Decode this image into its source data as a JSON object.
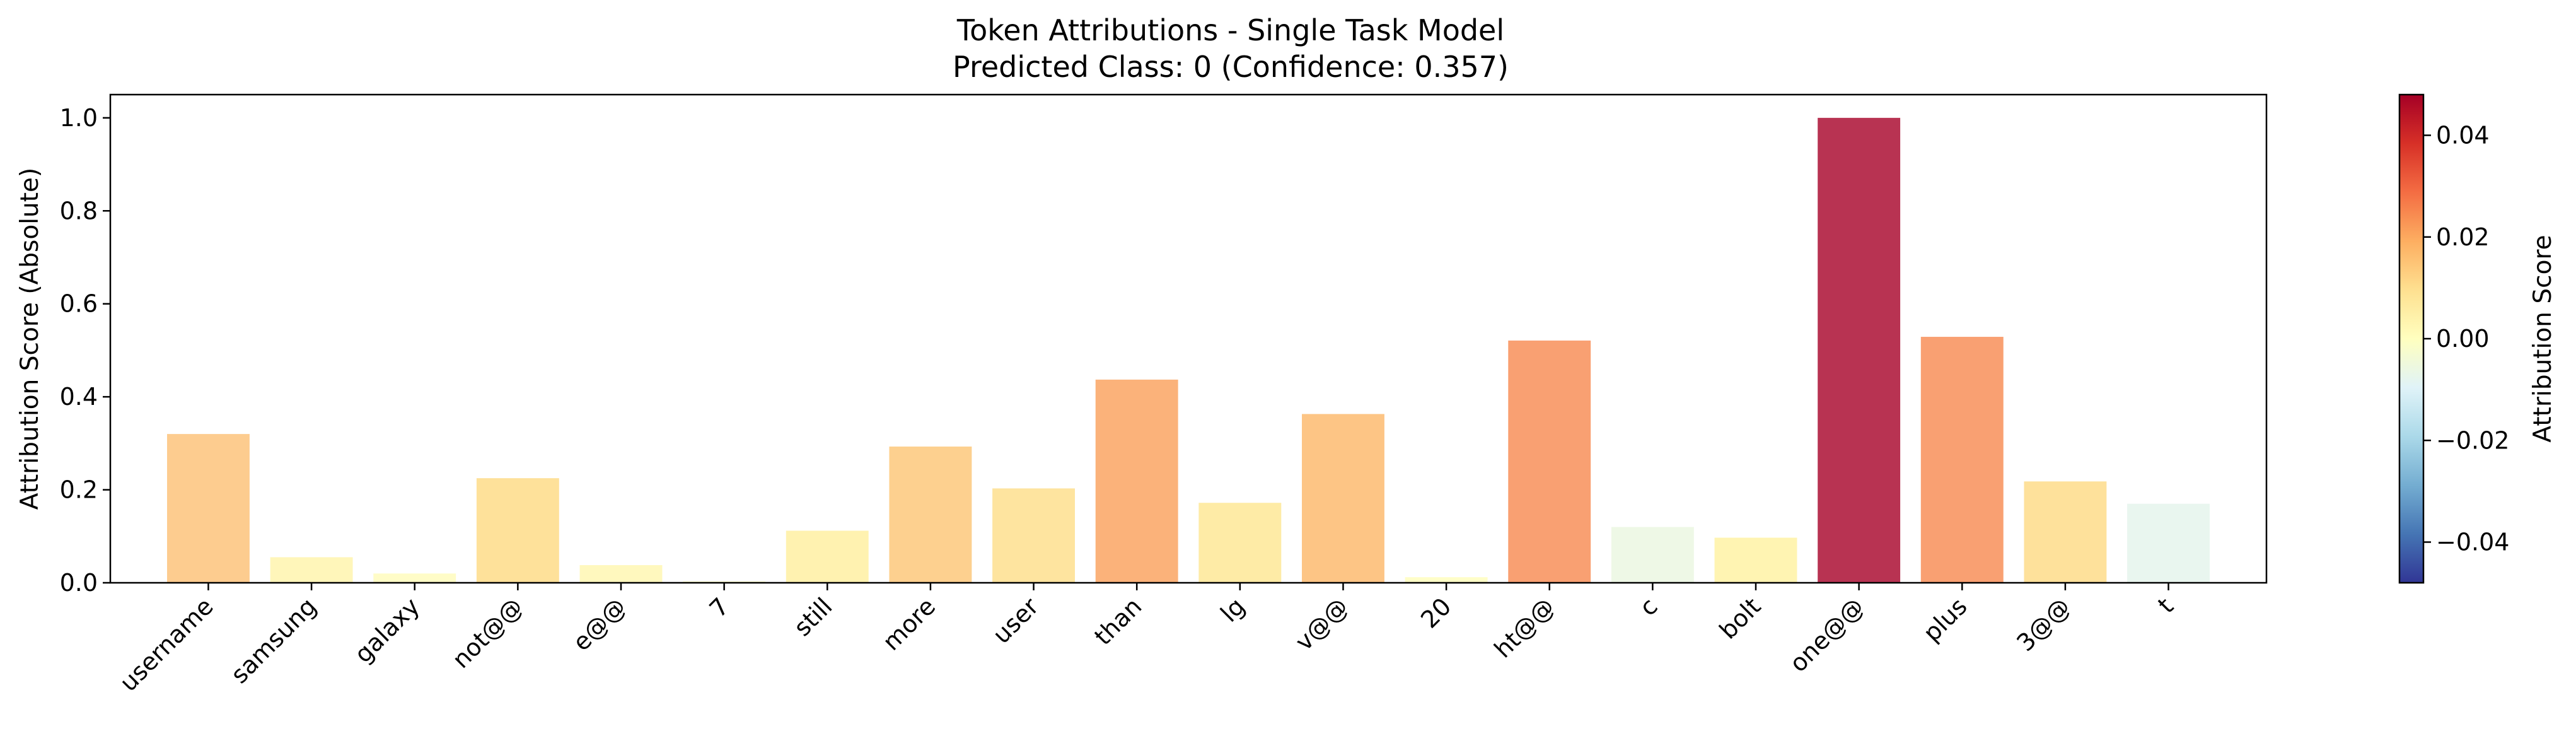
{
  "chart_data": {
    "type": "bar",
    "title": "Token Attributions - Single Task Model",
    "subtitle": "Predicted Class: 0 (Confidence: 0.357)",
    "xlabel": "",
    "ylabel": "Attribution Score (Absolute)",
    "ylim": [
      0,
      1.05
    ],
    "yticks": [
      "0.0",
      "0.2",
      "0.4",
      "0.6",
      "0.8",
      "1.0"
    ],
    "categories": [
      "username",
      "samsung",
      "galaxy",
      "not@@",
      "e@@",
      "7",
      "still",
      "more",
      "user",
      "than",
      "lg",
      "v@@",
      "20",
      "ht@@",
      "c",
      "bolt",
      "one@@",
      "plus",
      "3@@",
      "t"
    ],
    "values": [
      0.32,
      0.055,
      0.02,
      0.225,
      0.038,
      0.003,
      0.112,
      0.293,
      0.203,
      0.437,
      0.172,
      0.363,
      0.012,
      0.521,
      0.12,
      0.097,
      1.0,
      0.529,
      0.218,
      0.17
    ],
    "bar_colors": [
      "#FDCC8F",
      "#FFF6BA",
      "#FFFCC7",
      "#FEE19A",
      "#FFF8BE",
      "#FFFFCC",
      "#FFF2B0",
      "#FDD08F",
      "#FEE49F",
      "#FBB27A",
      "#FEEBA6",
      "#FDC585",
      "#FFFEC8",
      "#F9A072",
      "#EEF8E6",
      "#FFF4B2",
      "#B83352",
      "#F9A072",
      "#FEE19B",
      "#E9F6EF"
    ],
    "grid": false,
    "colorbar": {
      "label": "Attribution Score",
      "colormap": "RdYlBu_r",
      "range": [
        -0.048,
        0.048
      ],
      "ticks": [
        0.04,
        0.02,
        0.0,
        -0.02,
        -0.04
      ],
      "tick_labels": [
        "0.04",
        "0.02",
        "0.00",
        "−0.02",
        "−0.04"
      ],
      "colors_top_to_bottom": [
        "#A50026",
        "#D73027",
        "#F46D43",
        "#FDAE61",
        "#FEE090",
        "#FFFFBF",
        "#E0F3F8",
        "#ABD9E9",
        "#74ADD1",
        "#4575B4",
        "#313695"
      ]
    }
  }
}
